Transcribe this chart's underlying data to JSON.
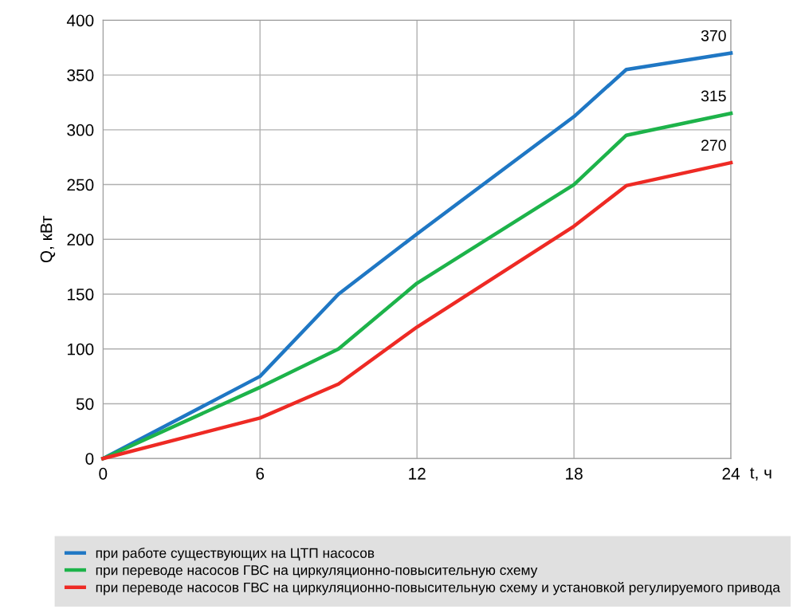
{
  "chart_data": {
    "type": "line",
    "xlabel": "t, ч",
    "ylabel": "Q, кВт",
    "x": [
      0,
      6,
      9,
      12,
      18,
      20,
      24
    ],
    "series": [
      {
        "name": "при работе существующих на ЦТП насосов",
        "color": "#1f77c4",
        "values": [
          0,
          75,
          150,
          205,
          312,
          355,
          370
        ],
        "value_labels": [
          null,
          null,
          null,
          null,
          null,
          null,
          "370"
        ]
      },
      {
        "name": "при переводе насосов ГВС на циркуляционно-повысительную схему",
        "color": "#1db34a",
        "values": [
          0,
          65,
          100,
          160,
          250,
          295,
          315
        ],
        "value_labels": [
          null,
          null,
          null,
          null,
          null,
          null,
          "315"
        ]
      },
      {
        "name": "при переводе насосов ГВС на циркуляционно-повысительную схему и установкой регулируемого привода",
        "color": "#ee2a24",
        "values": [
          0,
          37,
          68,
          120,
          212,
          249,
          270
        ],
        "value_labels": [
          null,
          null,
          null,
          null,
          null,
          null,
          "270"
        ]
      }
    ],
    "xlim": [
      0,
      24
    ],
    "ylim": [
      0,
      400
    ],
    "xticks": [
      0,
      6,
      12,
      18,
      24
    ],
    "yticks": [
      0,
      50,
      100,
      150,
      200,
      250,
      300,
      350,
      400
    ],
    "grid": true,
    "legend": "bottom",
    "marker": "none",
    "line_style": "solid"
  }
}
